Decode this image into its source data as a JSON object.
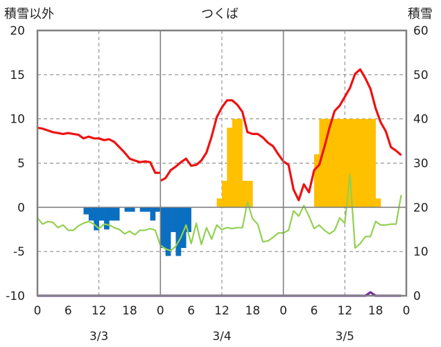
{
  "chart_data": {
    "type": "bar+line",
    "title": "つくば",
    "left_axis_label": "積雪以外",
    "right_axis_label": "積雪",
    "left_ylim": [
      -10,
      20
    ],
    "left_yticks": [
      "20",
      "15",
      "10",
      "5",
      "0",
      "-5",
      "-10"
    ],
    "right_ylim": [
      0,
      60
    ],
    "right_yticks": [
      "60",
      "50",
      "40",
      "30",
      "20",
      "10",
      "0"
    ],
    "x_hour_ticks": [
      "0",
      "6",
      "12",
      "18",
      "0",
      "6",
      "12",
      "18",
      "0",
      "6",
      "12",
      "18",
      "0"
    ],
    "date_labels": [
      "3/3",
      "3/4",
      "3/5"
    ],
    "grid": true,
    "colors": {
      "temperature": "#ee1111",
      "snow_depth": "#ffc000",
      "precip": "#0a6fc0",
      "humidity_like": "#92d050",
      "bottom": "#7030a0",
      "axis": "#808080",
      "grid": "#808080"
    },
    "series": [
      {
        "key": "red",
        "axis": "left",
        "values": [
          [
            0,
            9.0
          ],
          [
            1,
            8.9
          ],
          [
            2,
            8.7
          ],
          [
            3,
            8.5
          ],
          [
            4,
            8.4
          ],
          [
            5,
            8.3
          ],
          [
            6,
            8.4
          ],
          [
            7,
            8.3
          ],
          [
            8,
            8.2
          ],
          [
            9,
            7.8
          ],
          [
            10,
            8.0
          ],
          [
            11,
            7.8
          ],
          [
            12,
            7.8
          ],
          [
            13,
            7.6
          ],
          [
            14,
            7.7
          ],
          [
            15,
            7.4
          ],
          [
            16,
            6.8
          ],
          [
            17,
            6.2
          ],
          [
            18,
            5.5
          ],
          [
            19,
            5.3
          ],
          [
            20,
            5.1
          ],
          [
            21,
            5.2
          ],
          [
            22,
            5.1
          ],
          [
            23,
            3.9
          ],
          [
            24,
            3.9
          ],
          null,
          [
            24,
            3.0
          ],
          [
            25,
            3.3
          ],
          [
            26,
            4.2
          ],
          [
            27,
            4.6
          ],
          [
            28,
            5.1
          ],
          [
            29,
            5.5
          ],
          [
            30,
            4.7
          ],
          [
            31,
            4.8
          ],
          [
            32,
            5.3
          ],
          [
            33,
            6.2
          ],
          [
            34,
            8.0
          ],
          [
            35,
            10.2
          ],
          [
            36,
            11.3
          ],
          [
            37,
            12.1
          ],
          [
            38,
            12.1
          ],
          [
            39,
            11.6
          ],
          [
            40,
            10.8
          ],
          [
            41,
            8.5
          ],
          [
            42,
            8.3
          ],
          [
            43,
            8.3
          ],
          [
            44,
            7.9
          ],
          [
            45,
            7.3
          ],
          [
            46,
            6.9
          ],
          [
            47,
            6.0
          ],
          [
            48,
            5.2
          ],
          [
            49,
            4.8
          ],
          [
            50,
            2.0
          ],
          [
            51,
            0.8
          ],
          [
            52,
            2.6
          ],
          [
            53,
            1.7
          ],
          [
            54,
            4.2
          ],
          [
            55,
            4.8
          ],
          [
            56,
            6.8
          ],
          [
            57,
            9.0
          ],
          [
            58,
            10.9
          ],
          [
            59,
            11.5
          ],
          [
            60,
            12.5
          ],
          [
            61,
            13.5
          ],
          [
            62,
            15.1
          ],
          [
            63,
            15.6
          ],
          [
            64,
            14.6
          ],
          [
            65,
            13.4
          ],
          [
            66,
            11.2
          ],
          [
            67,
            9.6
          ],
          [
            68,
            8.6
          ],
          [
            69,
            6.8
          ],
          [
            70,
            6.4
          ],
          [
            71,
            5.9
          ]
        ]
      },
      {
        "key": "green",
        "axis": "left",
        "values": [
          [
            0,
            -1.2
          ],
          [
            1,
            -1.9
          ],
          [
            2,
            -1.6
          ],
          [
            3,
            -1.7
          ],
          [
            4,
            -2.3
          ],
          [
            5,
            -2.0
          ],
          [
            6,
            -2.6
          ],
          [
            7,
            -2.6
          ],
          [
            8,
            -2.1
          ],
          [
            9,
            -1.8
          ],
          [
            10,
            -1.6
          ],
          [
            11,
            -1.9
          ],
          [
            12,
            -2.4
          ],
          [
            13,
            -1.9
          ],
          [
            14,
            -2.0
          ],
          [
            15,
            -2.3
          ],
          [
            16,
            -2.5
          ],
          [
            17,
            -3.0
          ],
          [
            18,
            -2.7
          ],
          [
            19,
            -3.1
          ],
          [
            20,
            -2.6
          ],
          [
            21,
            -2.6
          ],
          [
            22,
            -2.4
          ],
          [
            23,
            -2.6
          ],
          [
            24,
            -4.3
          ],
          [
            25,
            -4.7
          ],
          [
            26,
            -4.9
          ],
          [
            27,
            -4.4
          ],
          [
            28,
            -3.4
          ],
          [
            29,
            -2.0
          ],
          [
            30,
            -4.1
          ],
          [
            31,
            -1.8
          ],
          [
            32,
            -4.2
          ],
          [
            33,
            -2.3
          ],
          [
            34,
            -3.6
          ],
          [
            35,
            -2.0
          ],
          [
            36,
            -2.5
          ],
          [
            37,
            -2.3
          ],
          [
            38,
            -2.4
          ],
          [
            39,
            -2.3
          ],
          [
            40,
            -2.3
          ],
          [
            41,
            0.6
          ],
          [
            42,
            -1.3
          ],
          [
            43,
            -1.9
          ],
          [
            44,
            -3.9
          ],
          [
            45,
            -3.8
          ],
          [
            46,
            -3.4
          ],
          [
            47,
            -2.9
          ],
          [
            48,
            -2.9
          ],
          [
            49,
            -2.6
          ],
          [
            50,
            -0.4
          ],
          [
            51,
            -1.0
          ],
          [
            52,
            0.2
          ],
          [
            53,
            -1.0
          ],
          [
            54,
            -2.4
          ],
          [
            55,
            -2.0
          ],
          [
            56,
            -2.6
          ],
          [
            57,
            -3.0
          ],
          [
            58,
            -2.6
          ],
          [
            59,
            -1.2
          ],
          [
            60,
            -1.8
          ],
          [
            61,
            3.7
          ],
          [
            62,
            -4.6
          ],
          [
            63,
            -4.1
          ],
          [
            64,
            -3.3
          ],
          [
            65,
            -3.3
          ],
          [
            66,
            -1.6
          ],
          [
            67,
            -2.0
          ],
          [
            68,
            -2.0
          ],
          [
            69,
            -1.9
          ],
          [
            70,
            -1.9
          ],
          [
            71,
            1.4
          ]
        ]
      },
      {
        "key": "purple",
        "axis": "left",
        "values": [
          [
            0,
            -10
          ],
          [
            64,
            -10
          ],
          [
            65,
            -9.6
          ],
          [
            66,
            -10
          ],
          [
            71,
            -10
          ]
        ]
      }
    ],
    "snow_bars": {
      "axis": "right",
      "values": [
        [
          35,
          22
        ],
        [
          36,
          26
        ],
        [
          37,
          38
        ],
        [
          38,
          40
        ],
        [
          39,
          40
        ],
        [
          40,
          26
        ],
        [
          41,
          26
        ],
        [
          54,
          32
        ],
        [
          55,
          40
        ],
        [
          56,
          40
        ],
        [
          57,
          40
        ],
        [
          58,
          40
        ],
        [
          59,
          40
        ],
        [
          60,
          40
        ],
        [
          61,
          40
        ],
        [
          62,
          40
        ],
        [
          63,
          40
        ],
        [
          64,
          40
        ],
        [
          65,
          40
        ],
        [
          66,
          22
        ]
      ]
    },
    "precip_bars": {
      "axis": "left",
      "values": [
        [
          9,
          -0.8
        ],
        [
          10,
          -1.5
        ],
        [
          11,
          -2.6
        ],
        [
          12,
          -1.5
        ],
        [
          13,
          -2.5
        ],
        [
          14,
          -1.5
        ],
        [
          15,
          -1.5
        ],
        [
          17,
          -0.5
        ],
        [
          18,
          -0.5
        ],
        [
          20,
          -0.5
        ],
        [
          21,
          -0.5
        ],
        [
          22,
          -1.5
        ],
        [
          23,
          -0.5
        ],
        [
          24,
          -4.6
        ],
        [
          25,
          -5.5
        ],
        [
          26,
          -2.8
        ],
        [
          27,
          -5.5
        ],
        [
          28,
          -4.6
        ],
        [
          29,
          -2.8
        ]
      ]
    }
  }
}
